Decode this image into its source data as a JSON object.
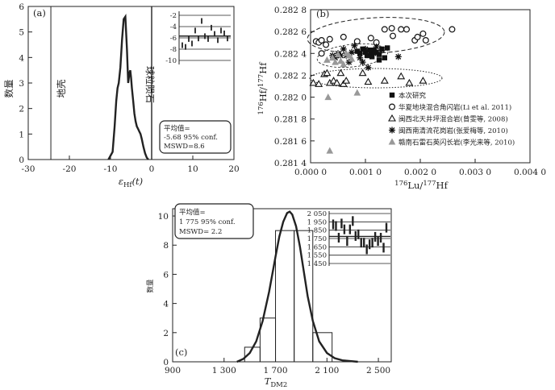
{
  "chart_data": [
    {
      "panel": "(a)",
      "type": "line",
      "xlabel": "εHf(t)",
      "xlabel_main": "ε",
      "xlabel_sub": "Hf",
      "xlabel_tail": "(t)",
      "ylabel": "数量",
      "xlim": [
        -30,
        20
      ],
      "ylim": [
        0,
        6
      ],
      "xticks": [
        -30,
        -20,
        -10,
        0,
        10,
        20
      ],
      "yticks": [
        0,
        1,
        2,
        3,
        4,
        5,
        6
      ],
      "annotations": {
        "vertical_line_label": "地壳",
        "divider_label": "球粒陨石",
        "vertical_line_x": -24.5,
        "divider_x": 0
      },
      "curve": {
        "x": [
          -10.5,
          -9.5,
          -9.0,
          -8.6,
          -8.3,
          -8.0,
          -7.6,
          -7.2,
          -6.8,
          -6.4,
          -6.0,
          -5.7,
          -5.4,
          -5.2,
          -5.0,
          -4.8,
          -4.5,
          -4.2,
          -3.9,
          -3.6,
          -3.3,
          -3.0,
          -2.7,
          -2.4,
          -2.0,
          -1.6,
          -1.2,
          -0.8
        ],
        "y": [
          0.0,
          0.3,
          1.3,
          2.3,
          2.8,
          3.0,
          3.6,
          4.7,
          5.5,
          5.6,
          4.3,
          3.0,
          3.4,
          3.5,
          3.2,
          2.8,
          2.3,
          1.8,
          1.5,
          1.3,
          1.2,
          1.1,
          1.0,
          0.8,
          0.5,
          0.25,
          0.08,
          0.0
        ]
      },
      "inset": {
        "yticks": [
          -2,
          -4,
          -6,
          -8,
          -10
        ],
        "mean": -5.68,
        "conf_band": [
          -4.9,
          -6.5
        ],
        "points": [
          -7.3,
          -7.6,
          -6.2,
          -7.0,
          -4.7,
          -6.1,
          -3.0,
          -5.7,
          -6.2,
          -4.2,
          -5.3,
          -6.4,
          -4.7,
          -5.2,
          -6.1
        ]
      },
      "stats_box": {
        "line1": "平均值=",
        "line2": "-5.68  95% conf.",
        "line3": "MSWD=8.6"
      }
    },
    {
      "panel": "(b)",
      "type": "scatter",
      "xlabel": "176Lu/177Hf",
      "ylabel": "176Hf/177Hf",
      "xlim": [
        0,
        0.004
      ],
      "ylim": [
        0.2814,
        0.2828
      ],
      "xticks": [
        "0.000 0",
        "0.001 0",
        "0.002 0",
        "0.003 0",
        "0.004 0"
      ],
      "xtick_values": [
        0,
        0.001,
        0.002,
        0.003,
        0.004
      ],
      "yticks": [
        "0.281 4",
        "0.281 6",
        "0.281 8",
        "0.282 0",
        "0.282 2",
        "0.282 4",
        "0.282 6",
        "0.282 8"
      ],
      "ytick_values": [
        0.2814,
        0.2816,
        0.2818,
        0.282,
        0.2822,
        0.2824,
        0.2826,
        0.2828
      ],
      "series": [
        {
          "name": "本次研究",
          "marker": "square",
          "points": [
            [
              0.00085,
              0.28242
            ],
            [
              0.0009,
              0.2824
            ],
            [
              0.00095,
              0.28244
            ],
            [
              0.001,
              0.28241
            ],
            [
              0.00103,
              0.28238
            ],
            [
              0.00108,
              0.28243
            ],
            [
              0.0011,
              0.2824
            ],
            [
              0.00112,
              0.28237
            ],
            [
              0.00115,
              0.28243
            ],
            [
              0.0012,
              0.28241
            ],
            [
              0.00125,
              0.28239
            ],
            [
              0.0013,
              0.28244
            ],
            [
              0.00135,
              0.28236
            ],
            [
              0.0014,
              0.28245
            ],
            [
              0.00125,
              0.28234
            ]
          ]
        },
        {
          "name": "华夏地块混合角闪岩(Li et al. 2011)",
          "marker": "circle",
          "points": [
            [
              0.0001,
              0.28251
            ],
            [
              0.00015,
              0.2825
            ],
            [
              0.0002,
              0.28252
            ],
            [
              0.00028,
              0.28248
            ],
            [
              0.00035,
              0.28253
            ],
            [
              0.0006,
              0.28255
            ],
            [
              0.00085,
              0.28251
            ],
            [
              0.0011,
              0.28254
            ],
            [
              0.0012,
              0.2825
            ],
            [
              0.00135,
              0.28262
            ],
            [
              0.00148,
              0.28263
            ],
            [
              0.00165,
              0.28262
            ],
            [
              0.00175,
              0.28262
            ],
            [
              0.0019,
              0.28252
            ],
            [
              0.00195,
              0.28255
            ],
            [
              0.0002,
              0.2824
            ],
            [
              0.0015,
              0.28256
            ],
            [
              0.00205,
              0.28258
            ],
            [
              0.0021,
              0.28252
            ],
            [
              0.00258,
              0.28262
            ]
          ]
        },
        {
          "name": "闽西北天井坪混合岩(曾雯等, 2008)",
          "marker": "triangle-open",
          "points": [
            [
              5e-05,
              0.28213
            ],
            [
              0.00015,
              0.28212
            ],
            [
              0.00025,
              0.28221
            ],
            [
              0.0003,
              0.28222
            ],
            [
              0.00035,
              0.28213
            ],
            [
              0.00042,
              0.28215
            ],
            [
              0.00048,
              0.28213
            ],
            [
              0.00055,
              0.28222
            ],
            [
              0.0006,
              0.28212
            ],
            [
              0.00065,
              0.28215
            ],
            [
              0.00095,
              0.28222
            ],
            [
              0.00105,
              0.28214
            ],
            [
              0.00135,
              0.28215
            ],
            [
              0.00165,
              0.28219
            ],
            [
              0.0018,
              0.28213
            ],
            [
              0.00205,
              0.28215
            ]
          ]
        },
        {
          "name": "闽西南清流花岗岩(张爱梅等, 2010)",
          "marker": "star",
          "points": [
            [
              0.0004,
              0.28238
            ],
            [
              0.00045,
              0.28236
            ],
            [
              0.0005,
              0.2824
            ],
            [
              0.00055,
              0.28238
            ],
            [
              0.0006,
              0.28244
            ],
            [
              0.00065,
              0.28238
            ],
            [
              0.0007,
              0.28232
            ],
            [
              0.00075,
              0.28241
            ],
            [
              0.0008,
              0.28247
            ],
            [
              0.0009,
              0.28236
            ],
            [
              0.00095,
              0.28232
            ],
            [
              0.001,
              0.28244
            ],
            [
              0.00105,
              0.28227
            ],
            [
              0.0011,
              0.28242
            ],
            [
              0.00115,
              0.2824
            ],
            [
              0.0012,
              0.28246
            ],
            [
              0.0013,
              0.28243
            ],
            [
              0.0016,
              0.28237
            ]
          ]
        },
        {
          "name": "赣南石雷石英闪长岩(李光来等, 2010)",
          "marker": "triangle-filled",
          "points": [
            [
              0.0003,
              0.28234
            ],
            [
              0.00032,
              0.282
            ],
            [
              0.0004,
              0.28236
            ],
            [
              0.00045,
              0.28232
            ],
            [
              0.0005,
              0.28239
            ],
            [
              0.00055,
              0.28233
            ],
            [
              0.0006,
              0.2823
            ],
            [
              0.0007,
              0.28238
            ],
            [
              0.00075,
              0.28235
            ],
            [
              0.00085,
              0.28204
            ],
            [
              0.00035,
              0.28151
            ],
            [
              0.00065,
              0.2824
            ]
          ]
        }
      ]
    },
    {
      "panel": "(c)",
      "type": "bar",
      "xlabel": "TDM2",
      "xlabel_main": "T",
      "xlabel_sub": "DM2",
      "ylabel": "数量",
      "xlim": [
        900,
        2600
      ],
      "ylim": [
        0,
        10.5
      ],
      "xticks": [
        "900",
        "1 300",
        "1 700",
        "2 100",
        "2 500"
      ],
      "xtick_values": [
        900,
        1300,
        1700,
        2100,
        2500
      ],
      "yticks": [
        0,
        2,
        4,
        6,
        8,
        10
      ],
      "bins": [
        {
          "x0": 1460,
          "x1": 1580,
          "count": 1
        },
        {
          "x0": 1580,
          "x1": 1700,
          "count": 3
        },
        {
          "x0": 1700,
          "x1": 1845,
          "count": 9
        },
        {
          "x0": 1845,
          "x1": 1990,
          "count": 9
        },
        {
          "x0": 1990,
          "x1": 2140,
          "count": 2
        }
      ],
      "curve": {
        "x": [
          1400,
          1450,
          1500,
          1550,
          1600,
          1650,
          1700,
          1730,
          1760,
          1790,
          1810,
          1830,
          1860,
          1890,
          1920,
          1950,
          1990,
          2040,
          2100,
          2160,
          2220,
          2280,
          2340
        ],
        "y": [
          0.0,
          0.2,
          0.6,
          1.4,
          2.8,
          4.8,
          7.2,
          8.6,
          9.6,
          10.2,
          10.3,
          10.1,
          9.3,
          7.9,
          6.2,
          4.5,
          2.8,
          1.4,
          0.6,
          0.25,
          0.1,
          0.05,
          0.0
        ]
      },
      "inset": {
        "yticks": [
          "2 050",
          "1 950",
          "1 850",
          "1 750",
          "1 650",
          "1 550",
          "1 450"
        ],
        "ytick_values": [
          2050,
          1950,
          1850,
          1750,
          1650,
          1550,
          1450
        ],
        "mean": 1775,
        "conf_band": [
          1735,
          1815
        ],
        "points": [
          1920,
          1900,
          1760,
          1930,
          1860,
          1720,
          1860,
          1960,
          1780,
          1800,
          1700,
          1700,
          1620,
          1680,
          1700,
          1770,
          1720,
          1760,
          1640,
          1880
        ]
      },
      "stats_box": {
        "line1": "平均值=",
        "line2": "1 775  95% conf.",
        "line3": "MSWD= 2.2"
      },
      "panel_label": "(c)"
    }
  ]
}
